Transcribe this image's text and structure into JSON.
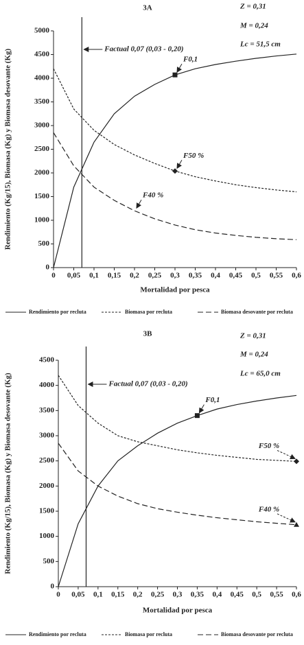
{
  "chart_data": [
    {
      "type": "line",
      "title": "3A",
      "params": [
        "Z = 0,31",
        "M = 0,24",
        "Lc = 51,5 cm"
      ],
      "xlabel": "Mortalidad por pesca",
      "ylabel": "Rendimiento (Kg/15), Biomasa (Kg) y Biomasa desovante (Kg)",
      "x": [
        0,
        0.05,
        0.1,
        0.15,
        0.2,
        0.25,
        0.3,
        0.35,
        0.4,
        0.45,
        0.5,
        0.55,
        0.6
      ],
      "xlim": [
        0,
        0.6
      ],
      "xticks": [
        0,
        {
          "value": 0.05,
          "label": "0,05"
        },
        {
          "value": 0.1,
          "label": "0,1"
        },
        {
          "value": 0.15,
          "label": "0,15"
        },
        {
          "value": 0.2,
          "label": "0,2"
        },
        {
          "value": 0.25,
          "label": "0,25"
        },
        {
          "value": 0.3,
          "label": "0,3"
        },
        {
          "value": 0.35,
          "label": "0,35"
        },
        {
          "value": 0.4,
          "label": "0,4"
        },
        {
          "value": 0.45,
          "label": "0,45"
        },
        {
          "value": 0.5,
          "label": "0,5"
        },
        {
          "value": 0.55,
          "label": "0,55"
        },
        {
          "value": 0.6,
          "label": "0,6"
        }
      ],
      "ylim": [
        0,
        5000
      ],
      "yticks": [
        0,
        500,
        1000,
        1500,
        2000,
        2500,
        3000,
        3500,
        4000,
        4500,
        5000
      ],
      "series": [
        {
          "name": "Rendimiento por recluta",
          "color": "#222",
          "style": "solid",
          "values": [
            0,
            1700,
            2650,
            3250,
            3620,
            3870,
            4070,
            4200,
            4290,
            4360,
            4420,
            4470,
            4510
          ]
        },
        {
          "name": "Biomasa por recluta",
          "color": "#222",
          "style": "dotted",
          "values": [
            4200,
            3350,
            2900,
            2600,
            2380,
            2200,
            2040,
            1920,
            1830,
            1750,
            1690,
            1640,
            1600
          ]
        },
        {
          "name": "Biomasa desovante por recluta",
          "color": "#222",
          "style": "dashed",
          "values": [
            2850,
            2150,
            1700,
            1420,
            1200,
            1030,
            900,
            800,
            730,
            680,
            640,
            610,
            590
          ]
        }
      ],
      "vline": {
        "value": 0.07,
        "label": "Factual 0,07 (0,03 - 0,20)"
      },
      "markers": [
        {
          "label": "F0,1",
          "x": 0.3,
          "y": 4070,
          "shape": "square"
        },
        {
          "label": "F50 %",
          "x": 0.3,
          "y": 2040,
          "shape": "diamond"
        },
        {
          "label": "F40 %",
          "x": 0.2,
          "y": 1200,
          "shape": "none"
        }
      ]
    },
    {
      "type": "line",
      "title": "3B",
      "params": [
        "Z = 0,31",
        "M = 0,24",
        "Lc = 65,0 cm"
      ],
      "xlabel": "Mortalidad por pesca",
      "ylabel": "Rendimiento (Kg/15), Biomasa (Kg) y Biomasa desovante (Kg)",
      "x": [
        0,
        0.05,
        0.1,
        0.15,
        0.2,
        0.25,
        0.3,
        0.35,
        0.4,
        0.45,
        0.5,
        0.55,
        0.6
      ],
      "xlim": [
        0,
        0.6
      ],
      "xticks": [
        0,
        {
          "value": 0.05,
          "label": "0,05"
        },
        {
          "value": 0.1,
          "label": "0,1"
        },
        {
          "value": 0.15,
          "label": "0,15"
        },
        {
          "value": 0.2,
          "label": "0,2"
        },
        {
          "value": 0.25,
          "label": "0,25"
        },
        {
          "value": 0.3,
          "label": "0,3"
        },
        {
          "value": 0.35,
          "label": "0,35"
        },
        {
          "value": 0.4,
          "label": "0,4"
        },
        {
          "value": 0.45,
          "label": "0,45"
        },
        {
          "value": 0.5,
          "label": "0,5"
        },
        {
          "value": 0.55,
          "label": "0,55"
        },
        {
          "value": 0.6,
          "label": "0,6"
        }
      ],
      "ylim": [
        0,
        4500
      ],
      "yticks": [
        0,
        500,
        1000,
        1500,
        2000,
        2500,
        3000,
        3500,
        4000,
        4500
      ],
      "series": [
        {
          "name": "Rendimiento por recluta",
          "color": "#222",
          "style": "solid",
          "values": [
            0,
            1250,
            2000,
            2500,
            2800,
            3050,
            3250,
            3400,
            3530,
            3620,
            3690,
            3750,
            3800
          ]
        },
        {
          "name": "Biomasa por recluta",
          "color": "#222",
          "style": "dotted",
          "values": [
            4200,
            3600,
            3250,
            3000,
            2880,
            2800,
            2720,
            2660,
            2610,
            2570,
            2530,
            2510,
            2490
          ]
        },
        {
          "name": "Biomasa desovante por recluta",
          "color": "#222",
          "style": "dashed",
          "values": [
            2850,
            2300,
            2000,
            1800,
            1650,
            1550,
            1480,
            1420,
            1370,
            1330,
            1290,
            1260,
            1230
          ]
        }
      ],
      "vline": {
        "value": 0.07,
        "label": "Factual 0,07 (0,03 - 0,20)"
      },
      "markers": [
        {
          "label": "F0,1",
          "x": 0.35,
          "y": 3400,
          "shape": "square"
        },
        {
          "label": "F50 %",
          "x": 0.6,
          "y": 2490,
          "shape": "diamond"
        },
        {
          "label": "F40 %",
          "x": 0.6,
          "y": 1230,
          "shape": "triangle"
        }
      ]
    }
  ]
}
